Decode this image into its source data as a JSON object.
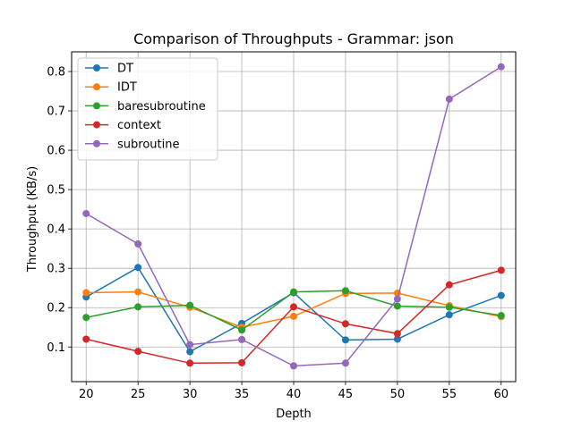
{
  "chart_data": {
    "type": "line",
    "title": "Comparison of Throughputs - Grammar: json",
    "xlabel": "Depth",
    "ylabel": "Throughput (KB/s)",
    "x": [
      20,
      25,
      30,
      35,
      40,
      45,
      50,
      55,
      60
    ],
    "xlim": [
      18.6,
      61.4
    ],
    "ylim": [
      0.012,
      0.85
    ],
    "xticks": [
      "20",
      "25",
      "30",
      "35",
      "40",
      "45",
      "50",
      "55",
      "60"
    ],
    "yticks": [
      "0.1",
      "0.2",
      "0.3",
      "0.4",
      "0.5",
      "0.6",
      "0.7",
      "0.8"
    ],
    "grid": true,
    "legend_position": "top-left",
    "series": [
      {
        "name": "DT",
        "color": "#1f77b4",
        "values": [
          0.227,
          0.302,
          0.088,
          0.16,
          0.238,
          0.118,
          0.12,
          0.182,
          0.231
        ]
      },
      {
        "name": "IDT",
        "color": "#ff7f0e",
        "values": [
          0.238,
          0.24,
          0.201,
          0.15,
          0.178,
          0.236,
          0.237,
          0.205,
          0.177
        ]
      },
      {
        "name": "baresubroutine",
        "color": "#2ca02c",
        "values": [
          0.175,
          0.202,
          0.206,
          0.143,
          0.24,
          0.243,
          0.204,
          0.201,
          0.18
        ]
      },
      {
        "name": "context",
        "color": "#d62728",
        "values": [
          0.12,
          0.089,
          0.059,
          0.06,
          0.202,
          0.159,
          0.134,
          0.258,
          0.295
        ]
      },
      {
        "name": "subroutine",
        "color": "#9467bd",
        "values": [
          0.439,
          0.362,
          0.106,
          0.119,
          0.052,
          0.059,
          0.222,
          0.73,
          0.812
        ]
      }
    ]
  }
}
